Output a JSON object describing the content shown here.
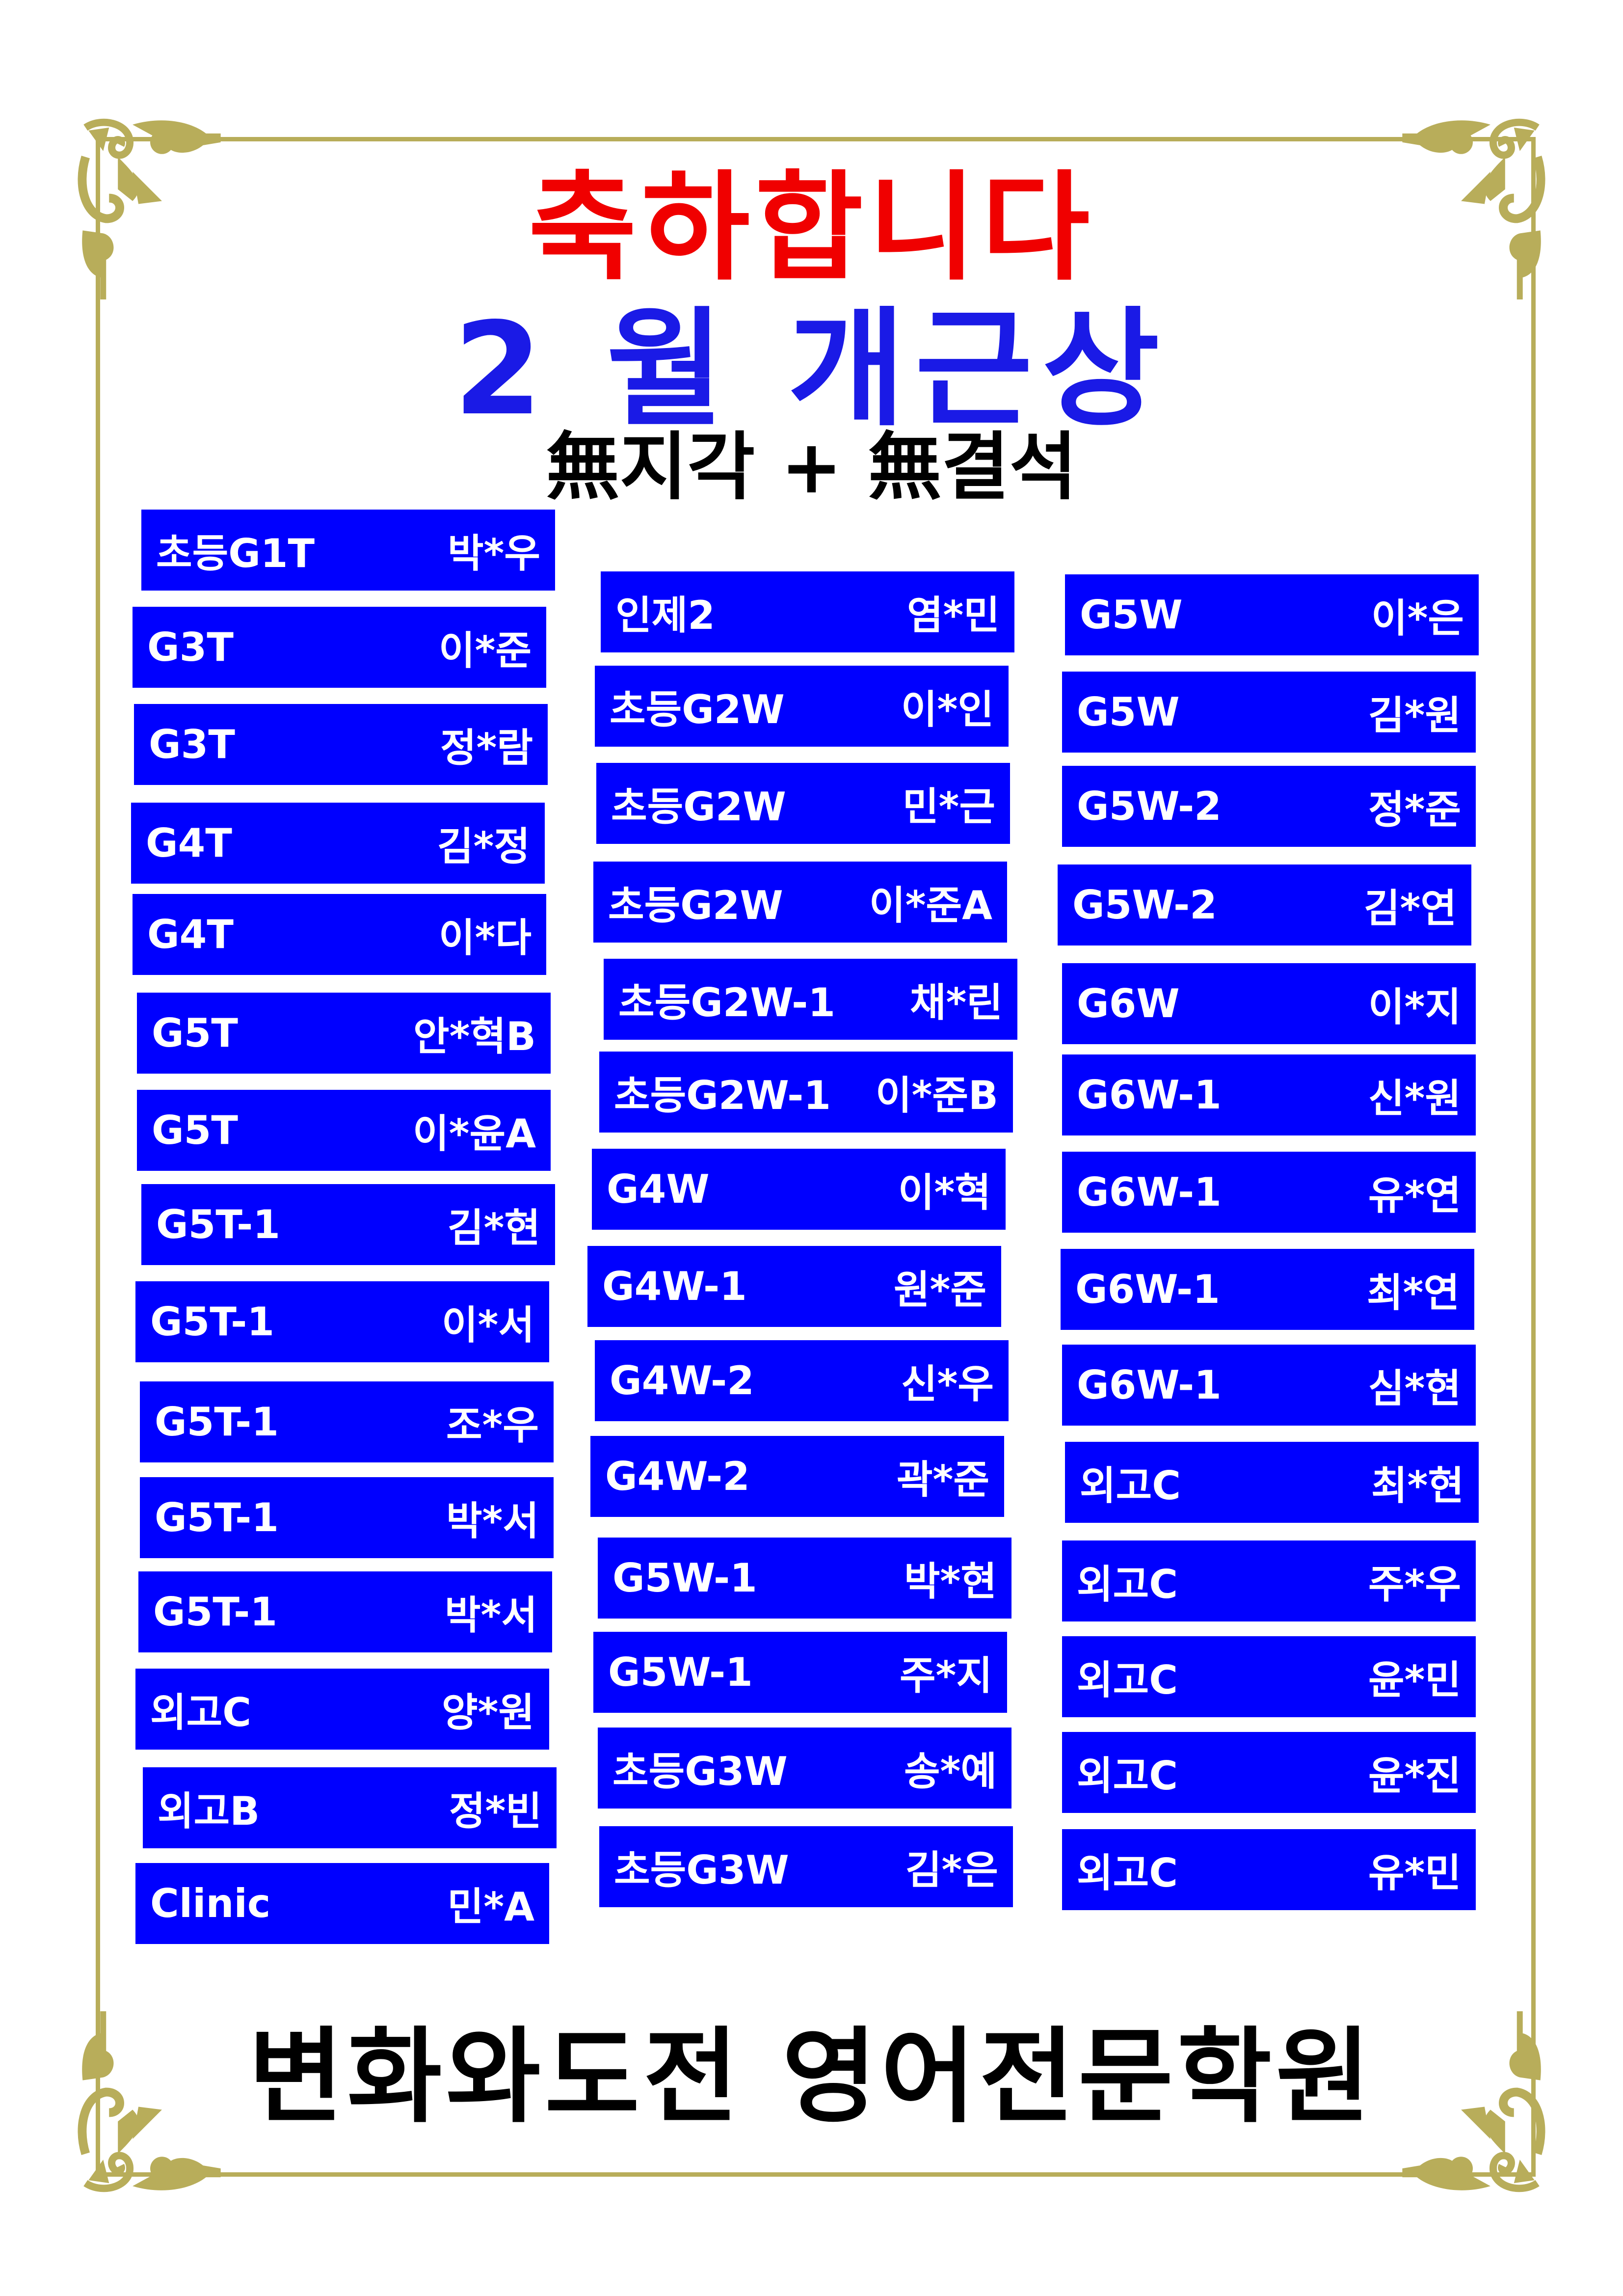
{
  "header": {
    "congrats": "축하합니다",
    "award": "2 월 개근상",
    "criteria": "無지각 + 無결석"
  },
  "footer": {
    "academy": "변화와도전 영어전문학원"
  },
  "colors": {
    "badge": "#0000ff",
    "congrats": "#f00000",
    "award": "#1a1ae6",
    "frame": "#b8ad5a"
  },
  "columns": [
    [
      {
        "class": "초등G1T",
        "name": "박*우"
      },
      {
        "class": "G3T",
        "name": "이*준"
      },
      {
        "class": "G3T",
        "name": "정*람"
      },
      {
        "class": "G4T",
        "name": "김*정"
      },
      {
        "class": "G4T",
        "name": "이*다"
      },
      {
        "class": "G5T",
        "name": "안*혁B"
      },
      {
        "class": "G5T",
        "name": "이*윤A"
      },
      {
        "class": "G5T-1",
        "name": "김*현"
      },
      {
        "class": "G5T-1",
        "name": "이*서"
      },
      {
        "class": "G5T-1",
        "name": "조*우"
      },
      {
        "class": "G5T-1",
        "name": "박*서"
      },
      {
        "class": "G5T-1",
        "name": "박*서"
      },
      {
        "class": "외고C",
        "name": "양*원"
      },
      {
        "class": "외고B",
        "name": "정*빈"
      },
      {
        "class": "Clinic",
        "name": "민*A"
      }
    ],
    [
      {
        "class": "인제2",
        "name": "염*민"
      },
      {
        "class": "초등G2W",
        "name": "이*인"
      },
      {
        "class": "초등G2W",
        "name": "민*근"
      },
      {
        "class": "초등G2W",
        "name": "이*준A"
      },
      {
        "class": "초등G2W-1",
        "name": "채*린"
      },
      {
        "class": "초등G2W-1",
        "name": "이*준B"
      },
      {
        "class": "G4W",
        "name": "이*혁"
      },
      {
        "class": "G4W-1",
        "name": "원*준"
      },
      {
        "class": "G4W-2",
        "name": "신*우"
      },
      {
        "class": "G4W-2",
        "name": "곽*준"
      },
      {
        "class": "G5W-1",
        "name": "박*현"
      },
      {
        "class": "G5W-1",
        "name": "주*지"
      },
      {
        "class": "초등G3W",
        "name": "송*예"
      },
      {
        "class": "초등G3W",
        "name": "김*은"
      }
    ],
    [
      {
        "class": "G5W",
        "name": "이*은"
      },
      {
        "class": "G5W",
        "name": "김*원"
      },
      {
        "class": "G5W-2",
        "name": "정*준"
      },
      {
        "class": "G5W-2",
        "name": "김*연"
      },
      {
        "class": "G6W",
        "name": "이*지"
      },
      {
        "class": "G6W-1",
        "name": "신*원"
      },
      {
        "class": "G6W-1",
        "name": "유*연"
      },
      {
        "class": "G6W-1",
        "name": "최*연"
      },
      {
        "class": "G6W-1",
        "name": "심*현"
      },
      {
        "class": "외고C",
        "name": "최*현"
      },
      {
        "class": "외고C",
        "name": "주*우"
      },
      {
        "class": "외고C",
        "name": "윤*민"
      },
      {
        "class": "외고C",
        "name": "윤*진"
      },
      {
        "class": "외고C",
        "name": "유*민"
      }
    ]
  ]
}
